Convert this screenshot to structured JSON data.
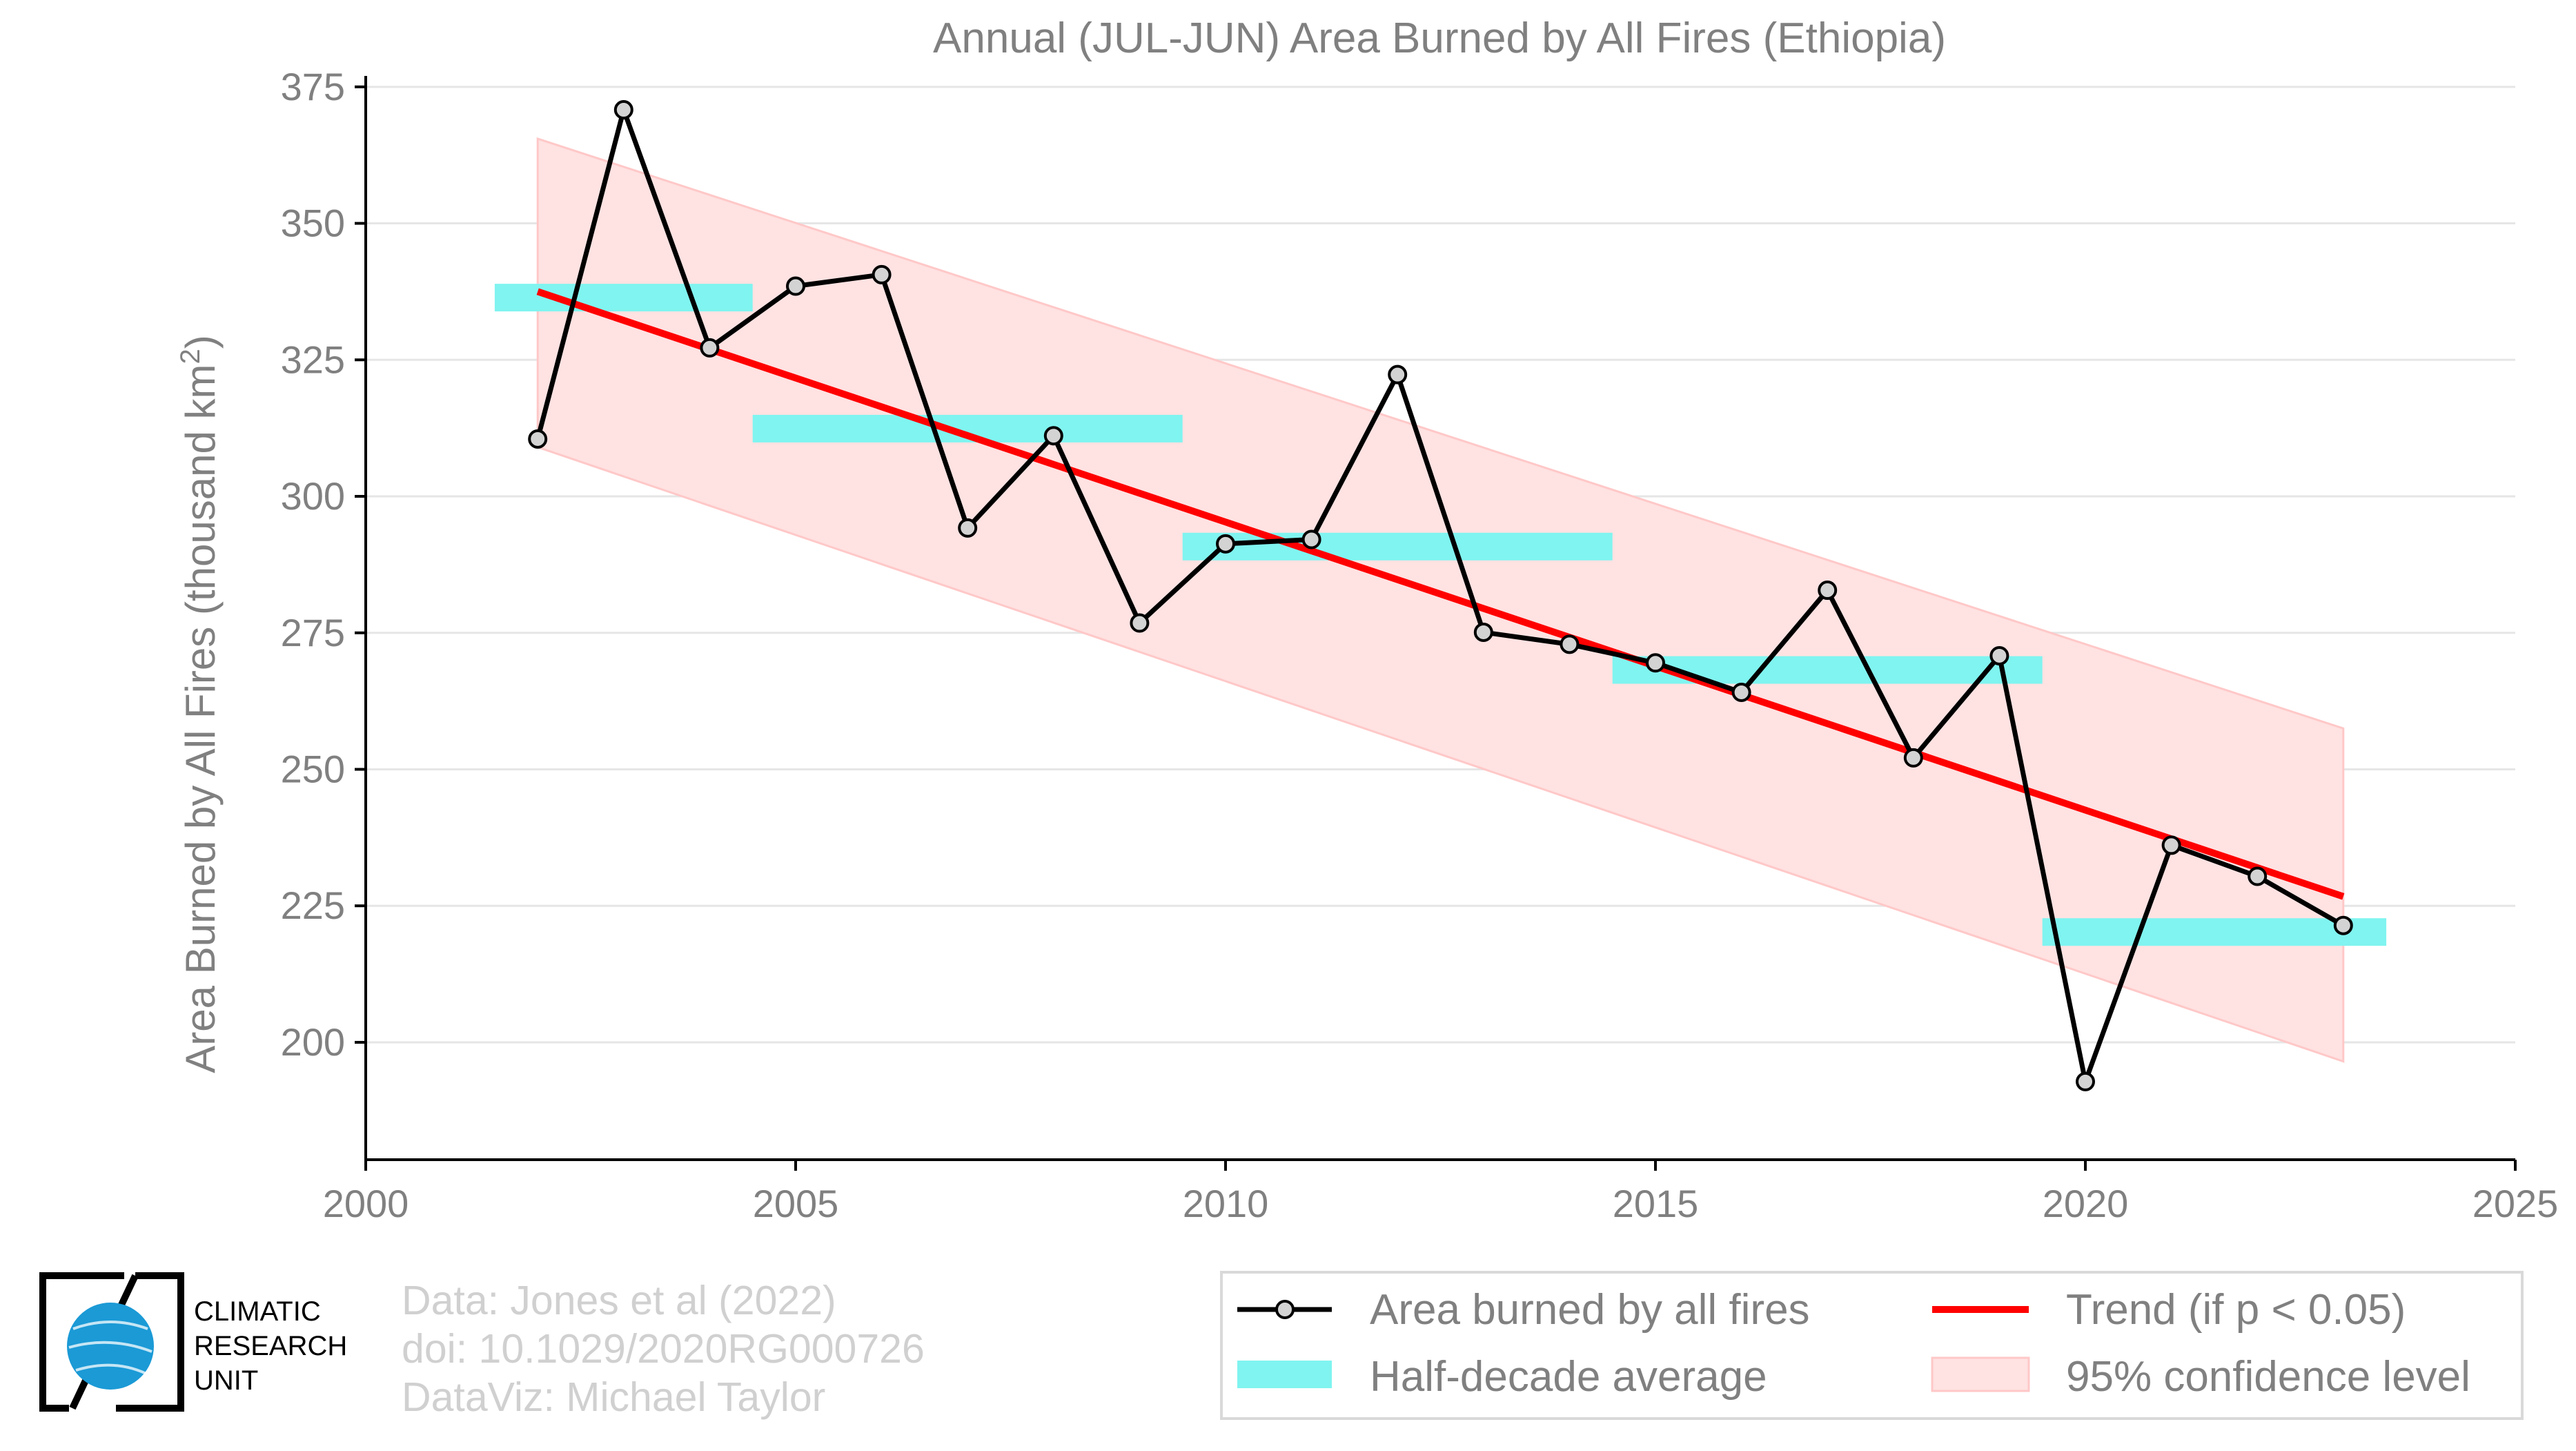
{
  "chart_data": {
    "type": "line",
    "title": "Annual (JUL-JUN) Area Burned by All Fires (Ethiopia)",
    "ylabel": "Area Burned by All Fires (thousand km",
    "ylabel_sup": "2",
    "ylabel_close": ")",
    "xlabel": "",
    "xlim": [
      2000,
      2025
    ],
    "ylim": [
      178.5,
      377
    ],
    "xticks": [
      2000,
      2005,
      2010,
      2015,
      2020,
      2025
    ],
    "yticks": [
      200,
      225,
      250,
      275,
      300,
      325,
      350,
      375
    ],
    "grid": "horizontal",
    "legend_position": "bottom-right",
    "series": [
      {
        "name": "Area burned by all fires",
        "color": "#000000",
        "marker_fill": "#d3d3d3",
        "x": [
          2002,
          2003,
          2004,
          2005,
          2006,
          2007,
          2008,
          2009,
          2010,
          2011,
          2012,
          2013,
          2014,
          2015,
          2016,
          2017,
          2018,
          2019,
          2020,
          2021,
          2022,
          2023
        ],
        "y": [
          310.5,
          370.8,
          327.2,
          338.5,
          340.6,
          294.2,
          311.1,
          276.8,
          291.3,
          292.1,
          322.3,
          275.1,
          272.9,
          269.5,
          264.1,
          282.8,
          252.1,
          270.8,
          192.8,
          236.1,
          230.4,
          221.4
        ]
      }
    ],
    "half_decade_average": {
      "name": "Half-decade average",
      "color": "#80f4f0",
      "segments": [
        {
          "x0": 2001.5,
          "x1": 2004.5,
          "y": 336.4
        },
        {
          "x0": 2004.5,
          "x1": 2009.5,
          "y": 312.4
        },
        {
          "x0": 2009.5,
          "x1": 2014.5,
          "y": 290.8
        },
        {
          "x0": 2014.5,
          "x1": 2019.5,
          "y": 268.2
        },
        {
          "x0": 2019.5,
          "x1": 2023.5,
          "y": 220.2
        }
      ]
    },
    "trend": {
      "name": "Trend (if p < 0.05)",
      "color": "#ff0000",
      "x": [
        2002,
        2023
      ],
      "y": [
        337.5,
        226.7
      ]
    },
    "confidence": {
      "name": "95% confidence level",
      "color": "#ffe2e2",
      "edge_color": "#ffc8c8",
      "x": [
        2002,
        2023
      ],
      "upper": [
        365.5,
        257.5
      ],
      "lower": [
        309,
        196.5
      ]
    }
  },
  "credits": {
    "line1": "Data: Jones et al (2022)",
    "line2": "doi: 10.1029/2020RG000726",
    "line3": "DataViz: Michael Taylor"
  },
  "logo": {
    "line1": "CLIMATIC",
    "line2": "RESEARCH",
    "line3": "UNIT",
    "globe_color": "#1b9ad6"
  }
}
